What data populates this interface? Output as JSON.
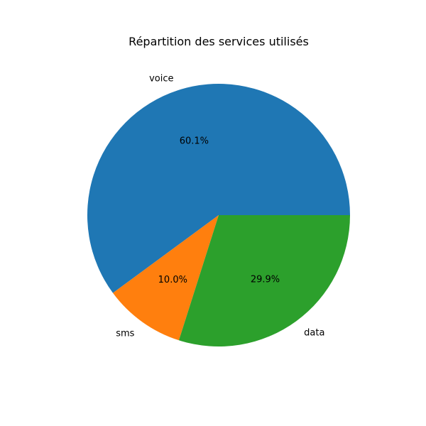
{
  "chart_data": {
    "type": "pie",
    "title": "Répartition des services utilisés",
    "slices": [
      {
        "label": "voice",
        "value": 60.1,
        "pct_label": "60.1%",
        "color": "#1f77b4"
      },
      {
        "label": "sms",
        "value": 10.0,
        "pct_label": "10.0%",
        "color": "#ff7f0e"
      },
      {
        "label": "data",
        "value": 29.9,
        "pct_label": "29.9%",
        "color": "#2ca02c"
      }
    ],
    "start_angle_deg": 0,
    "direction": "counterclockwise"
  }
}
